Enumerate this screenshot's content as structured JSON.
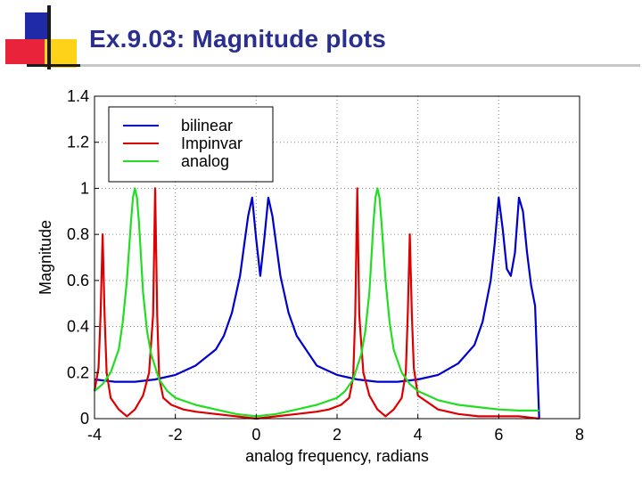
{
  "slide": {
    "title": "Ex.9.03:  Magnitude plots"
  },
  "chart_data": {
    "type": "line",
    "xlabel": "analog frequency, radians",
    "ylabel": "Magnitude",
    "xlim": [
      -4,
      8
    ],
    "ylim": [
      0,
      1.4
    ],
    "xticks": [
      -4,
      -2,
      0,
      2,
      4,
      6,
      8
    ],
    "yticks": [
      0,
      0.2,
      0.4,
      0.6,
      0.8,
      1,
      1.2,
      1.4
    ],
    "xtick_labels": [
      "-4",
      "-2",
      "0",
      "2",
      "4",
      "6",
      "8"
    ],
    "ytick_labels": [
      "0",
      "0.2",
      "0.4",
      "0.6",
      "0.8",
      "1",
      "1.2",
      "1.4"
    ],
    "grid": true,
    "legend_position": "top-left",
    "series": [
      {
        "name": "bilinear",
        "color": "#0000cc",
        "x": [
          -4.0,
          -3.5,
          -3.0,
          -2.5,
          -2.0,
          -1.5,
          -1.0,
          -0.8,
          -0.6,
          -0.4,
          -0.3,
          -0.2,
          -0.1,
          0.0,
          0.1,
          0.2,
          0.3,
          0.4,
          0.6,
          0.8,
          1.0,
          1.5,
          2.0,
          2.5,
          3.0,
          3.5,
          4.0,
          4.5,
          5.0,
          5.4,
          5.6,
          5.8,
          5.9,
          6.0,
          6.1,
          6.2,
          6.3,
          6.4,
          6.5,
          6.6,
          6.7,
          6.8,
          6.9,
          7.0
        ],
        "y": [
          0.17,
          0.16,
          0.16,
          0.17,
          0.19,
          0.23,
          0.3,
          0.36,
          0.46,
          0.62,
          0.75,
          0.88,
          0.96,
          0.78,
          0.62,
          0.78,
          0.96,
          0.88,
          0.62,
          0.46,
          0.36,
          0.23,
          0.19,
          0.17,
          0.16,
          0.16,
          0.17,
          0.19,
          0.24,
          0.32,
          0.42,
          0.6,
          0.76,
          0.96,
          0.82,
          0.65,
          0.62,
          0.72,
          0.96,
          0.9,
          0.72,
          0.58,
          0.49,
          0.0
        ]
      },
      {
        "name": "Impinvar",
        "color": "#dd0000",
        "x": [
          -4.0,
          -3.9,
          -3.85,
          -3.8,
          -3.75,
          -3.7,
          -3.6,
          -3.4,
          -3.2,
          -3.0,
          -2.8,
          -2.65,
          -2.55,
          -2.5,
          -2.45,
          -2.4,
          -2.3,
          -2.1,
          -1.8,
          -1.5,
          -1.0,
          -0.5,
          0.0,
          0.5,
          1.0,
          1.5,
          1.8,
          2.1,
          2.3,
          2.4,
          2.45,
          2.5,
          2.55,
          2.65,
          2.8,
          3.0,
          3.2,
          3.4,
          3.6,
          3.7,
          3.75,
          3.8,
          3.85,
          3.9,
          4.0,
          4.5,
          5.0,
          5.5,
          6.0,
          6.5,
          7.0
        ],
        "y": [
          0.12,
          0.22,
          0.45,
          0.8,
          0.45,
          0.2,
          0.09,
          0.04,
          0.01,
          0.04,
          0.1,
          0.2,
          0.45,
          1.0,
          0.45,
          0.18,
          0.09,
          0.06,
          0.04,
          0.03,
          0.02,
          0.01,
          0.0,
          0.01,
          0.02,
          0.03,
          0.04,
          0.06,
          0.09,
          0.18,
          0.45,
          1.0,
          0.45,
          0.2,
          0.1,
          0.04,
          0.01,
          0.04,
          0.09,
          0.2,
          0.45,
          0.8,
          0.45,
          0.22,
          0.1,
          0.04,
          0.02,
          0.01,
          0.01,
          0.01,
          0.0
        ]
      },
      {
        "name": "analog",
        "color": "#22dd22",
        "x": [
          -4.0,
          -3.8,
          -3.6,
          -3.4,
          -3.3,
          -3.2,
          -3.1,
          -3.05,
          -3.0,
          -2.95,
          -2.9,
          -2.8,
          -2.7,
          -2.6,
          -2.4,
          -2.2,
          -2.0,
          -1.5,
          -1.0,
          -0.5,
          0.0,
          0.5,
          1.0,
          1.5,
          2.0,
          2.2,
          2.4,
          2.6,
          2.7,
          2.8,
          2.9,
          2.95,
          3.0,
          3.05,
          3.1,
          3.2,
          3.3,
          3.4,
          3.6,
          3.8,
          4.0,
          4.5,
          5.0,
          5.5,
          6.0,
          6.5,
          7.0
        ],
        "y": [
          0.12,
          0.15,
          0.2,
          0.3,
          0.42,
          0.6,
          0.85,
          0.96,
          1.0,
          0.96,
          0.85,
          0.55,
          0.38,
          0.28,
          0.17,
          0.12,
          0.09,
          0.06,
          0.04,
          0.02,
          0.01,
          0.02,
          0.04,
          0.06,
          0.09,
          0.12,
          0.17,
          0.28,
          0.38,
          0.55,
          0.85,
          0.96,
          1.0,
          0.96,
          0.85,
          0.6,
          0.42,
          0.3,
          0.2,
          0.15,
          0.12,
          0.08,
          0.06,
          0.05,
          0.04,
          0.035,
          0.035
        ]
      }
    ]
  }
}
